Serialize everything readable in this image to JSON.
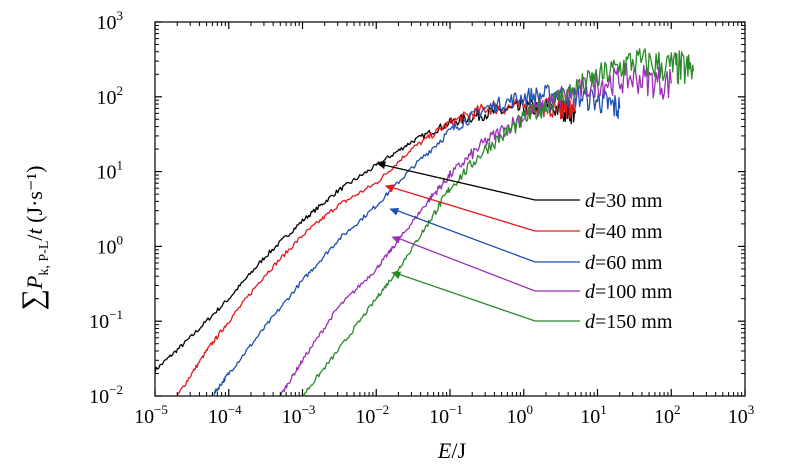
{
  "chart_data": {
    "type": "line",
    "title": "",
    "xlabel": "E/J",
    "ylabel": "∑P_{k, P-L}/t (J·s⁻¹)",
    "x_scale": "log",
    "y_scale": "log",
    "xlim": [
      1e-05,
      1000
    ],
    "ylim": [
      0.01,
      1000
    ],
    "x_ticks": [
      "10^-5",
      "10^-4",
      "10^-3",
      "10^-2",
      "10^-1",
      "10^0",
      "10^1",
      "10^2",
      "10^3"
    ],
    "y_ticks": [
      "10^-2",
      "10^-1",
      "10^0",
      "10^1",
      "10^2",
      "10^3"
    ],
    "grid": false,
    "legend_placement": "right, with arrows pointing to curves",
    "series": [
      {
        "name": "d=30 mm",
        "color": "#000000",
        "x": [
          1e-05,
          3e-05,
          0.0001,
          0.0003,
          0.001,
          0.003,
          0.01,
          0.03,
          0.1,
          0.3,
          1,
          3,
          5
        ],
        "y": [
          0.022,
          0.06,
          0.2,
          0.7,
          2.2,
          5.5,
          12,
          25,
          45,
          60,
          70,
          70,
          60
        ]
      },
      {
        "name": "d=40 mm",
        "color": "#e31a1c",
        "x": [
          2e-05,
          5e-05,
          0.0001,
          0.0003,
          0.001,
          0.003,
          0.01,
          0.03,
          0.1,
          0.3,
          1,
          3,
          5
        ],
        "y": [
          0.01,
          0.04,
          0.1,
          0.4,
          1.4,
          3.5,
          7,
          20,
          45,
          70,
          75,
          72,
          65
        ]
      },
      {
        "name": "d=60 mm",
        "color": "#1f4fb0",
        "x": [
          6e-05,
          0.0001,
          0.0003,
          0.001,
          0.003,
          0.01,
          0.03,
          0.1,
          0.3,
          1,
          3,
          10,
          20
        ],
        "y": [
          0.01,
          0.02,
          0.08,
          0.35,
          1.2,
          3.5,
          11,
          35,
          70,
          100,
          110,
          90,
          70
        ]
      },
      {
        "name": "d=100 mm",
        "color": "#9b30b8",
        "x": [
          0.0005,
          0.001,
          0.003,
          0.01,
          0.02,
          0.05,
          0.1,
          0.3,
          1,
          3,
          10,
          30,
          100
        ],
        "y": [
          0.01,
          0.03,
          0.15,
          0.5,
          1.2,
          4,
          9,
          25,
          55,
          95,
          150,
          180,
          150
        ]
      },
      {
        "name": "d=150 mm",
        "color": "#2a8a2a",
        "x": [
          0.001,
          0.003,
          0.01,
          0.02,
          0.05,
          0.1,
          0.3,
          1,
          3,
          10,
          30,
          100,
          200
        ],
        "y": [
          0.01,
          0.04,
          0.2,
          0.5,
          2,
          6,
          20,
          50,
          100,
          180,
          300,
          250,
          220
        ]
      }
    ]
  }
}
